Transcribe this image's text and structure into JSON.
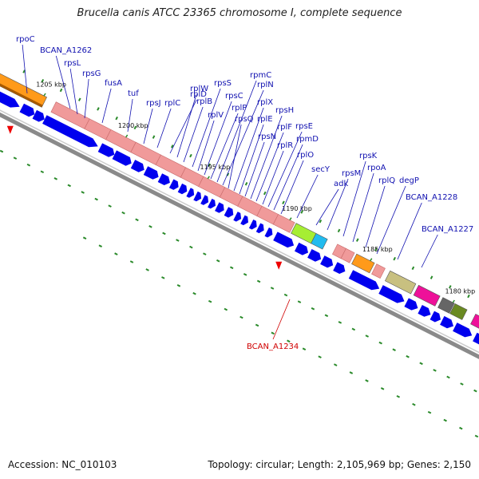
{
  "title": "Brucella canis ATCC 23365 chromosome I, complete sequence",
  "footer": {
    "accession": "Accession: NC_010103",
    "summary": "Topology: circular; Length: 2,105,969 bp; Genes: 2,150"
  },
  "colors": {
    "ribosomal": "#f09a9a",
    "ribosomal_edge": "#c86a6a",
    "forward_strand": "#0000ee",
    "backbone": "#888888",
    "orange": "#ff9a1a",
    "lime": "#a6ee33",
    "cyan": "#22bbee",
    "khaki": "#c8c080",
    "magenta": "#ee1199",
    "grey": "#666666",
    "olive": "#6a8a22",
    "label": "#1010b0",
    "highlight": "#d00000"
  },
  "kbp_ticks": [
    "1205 kbp",
    "1200 kbp",
    "1195 kbp",
    "1190 kbp",
    "1185 kbp",
    "1180 kbp"
  ],
  "gene_labels": [
    "rpoC",
    "BCAN_A1262",
    "rpsL",
    "rpsG",
    "fusA",
    "tuf",
    "rpsJ",
    "rplC",
    "rplD",
    "rplW",
    "rplB",
    "rpsS",
    "rplV",
    "rpsC",
    "rplP",
    "rpmC",
    "rplN",
    "rpsQ",
    "rplX",
    "rplE",
    "rpsN",
    "rpsH",
    "rplF",
    "rplR",
    "rpsE",
    "rpmD",
    "rplO",
    "secY",
    "adk",
    "rpsM",
    "rpsK",
    "rpoA",
    "rplQ",
    "degP",
    "BCAN_A1228",
    "BCAN_A1227"
  ],
  "highlight_label": "BCAN_A1234"
}
